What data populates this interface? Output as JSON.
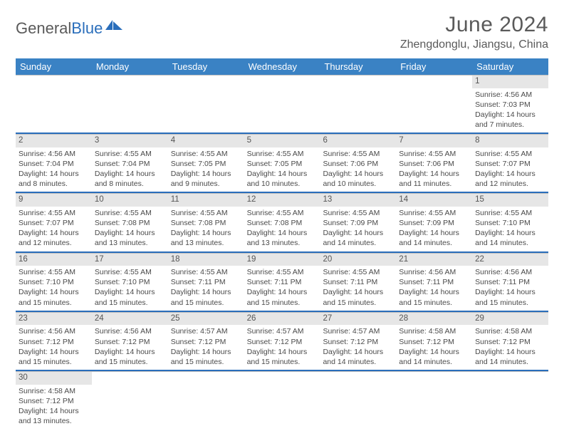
{
  "logo": {
    "text1": "General",
    "text2": "Blue"
  },
  "title": "June 2024",
  "location": "Zhengdonglu, Jiangsu, China",
  "dayNames": [
    "Sunday",
    "Monday",
    "Tuesday",
    "Wednesday",
    "Thursday",
    "Friday",
    "Saturday"
  ],
  "colors": {
    "headerBg": "#3a82c4",
    "accentLine": "#2a6ebb",
    "dayNumBg": "#e6e6e6",
    "text": "#4a4a4a"
  },
  "weeks": [
    [
      {
        "n": "",
        "sr": "",
        "ss": "",
        "dl": ""
      },
      {
        "n": "",
        "sr": "",
        "ss": "",
        "dl": ""
      },
      {
        "n": "",
        "sr": "",
        "ss": "",
        "dl": ""
      },
      {
        "n": "",
        "sr": "",
        "ss": "",
        "dl": ""
      },
      {
        "n": "",
        "sr": "",
        "ss": "",
        "dl": ""
      },
      {
        "n": "",
        "sr": "",
        "ss": "",
        "dl": ""
      },
      {
        "n": "1",
        "sr": "Sunrise: 4:56 AM",
        "ss": "Sunset: 7:03 PM",
        "dl": "Daylight: 14 hours and 7 minutes."
      }
    ],
    [
      {
        "n": "2",
        "sr": "Sunrise: 4:56 AM",
        "ss": "Sunset: 7:04 PM",
        "dl": "Daylight: 14 hours and 8 minutes."
      },
      {
        "n": "3",
        "sr": "Sunrise: 4:55 AM",
        "ss": "Sunset: 7:04 PM",
        "dl": "Daylight: 14 hours and 8 minutes."
      },
      {
        "n": "4",
        "sr": "Sunrise: 4:55 AM",
        "ss": "Sunset: 7:05 PM",
        "dl": "Daylight: 14 hours and 9 minutes."
      },
      {
        "n": "5",
        "sr": "Sunrise: 4:55 AM",
        "ss": "Sunset: 7:05 PM",
        "dl": "Daylight: 14 hours and 10 minutes."
      },
      {
        "n": "6",
        "sr": "Sunrise: 4:55 AM",
        "ss": "Sunset: 7:06 PM",
        "dl": "Daylight: 14 hours and 10 minutes."
      },
      {
        "n": "7",
        "sr": "Sunrise: 4:55 AM",
        "ss": "Sunset: 7:06 PM",
        "dl": "Daylight: 14 hours and 11 minutes."
      },
      {
        "n": "8",
        "sr": "Sunrise: 4:55 AM",
        "ss": "Sunset: 7:07 PM",
        "dl": "Daylight: 14 hours and 12 minutes."
      }
    ],
    [
      {
        "n": "9",
        "sr": "Sunrise: 4:55 AM",
        "ss": "Sunset: 7:07 PM",
        "dl": "Daylight: 14 hours and 12 minutes."
      },
      {
        "n": "10",
        "sr": "Sunrise: 4:55 AM",
        "ss": "Sunset: 7:08 PM",
        "dl": "Daylight: 14 hours and 13 minutes."
      },
      {
        "n": "11",
        "sr": "Sunrise: 4:55 AM",
        "ss": "Sunset: 7:08 PM",
        "dl": "Daylight: 14 hours and 13 minutes."
      },
      {
        "n": "12",
        "sr": "Sunrise: 4:55 AM",
        "ss": "Sunset: 7:08 PM",
        "dl": "Daylight: 14 hours and 13 minutes."
      },
      {
        "n": "13",
        "sr": "Sunrise: 4:55 AM",
        "ss": "Sunset: 7:09 PM",
        "dl": "Daylight: 14 hours and 14 minutes."
      },
      {
        "n": "14",
        "sr": "Sunrise: 4:55 AM",
        "ss": "Sunset: 7:09 PM",
        "dl": "Daylight: 14 hours and 14 minutes."
      },
      {
        "n": "15",
        "sr": "Sunrise: 4:55 AM",
        "ss": "Sunset: 7:10 PM",
        "dl": "Daylight: 14 hours and 14 minutes."
      }
    ],
    [
      {
        "n": "16",
        "sr": "Sunrise: 4:55 AM",
        "ss": "Sunset: 7:10 PM",
        "dl": "Daylight: 14 hours and 15 minutes."
      },
      {
        "n": "17",
        "sr": "Sunrise: 4:55 AM",
        "ss": "Sunset: 7:10 PM",
        "dl": "Daylight: 14 hours and 15 minutes."
      },
      {
        "n": "18",
        "sr": "Sunrise: 4:55 AM",
        "ss": "Sunset: 7:11 PM",
        "dl": "Daylight: 14 hours and 15 minutes."
      },
      {
        "n": "19",
        "sr": "Sunrise: 4:55 AM",
        "ss": "Sunset: 7:11 PM",
        "dl": "Daylight: 14 hours and 15 minutes."
      },
      {
        "n": "20",
        "sr": "Sunrise: 4:55 AM",
        "ss": "Sunset: 7:11 PM",
        "dl": "Daylight: 14 hours and 15 minutes."
      },
      {
        "n": "21",
        "sr": "Sunrise: 4:56 AM",
        "ss": "Sunset: 7:11 PM",
        "dl": "Daylight: 14 hours and 15 minutes."
      },
      {
        "n": "22",
        "sr": "Sunrise: 4:56 AM",
        "ss": "Sunset: 7:11 PM",
        "dl": "Daylight: 14 hours and 15 minutes."
      }
    ],
    [
      {
        "n": "23",
        "sr": "Sunrise: 4:56 AM",
        "ss": "Sunset: 7:12 PM",
        "dl": "Daylight: 14 hours and 15 minutes."
      },
      {
        "n": "24",
        "sr": "Sunrise: 4:56 AM",
        "ss": "Sunset: 7:12 PM",
        "dl": "Daylight: 14 hours and 15 minutes."
      },
      {
        "n": "25",
        "sr": "Sunrise: 4:57 AM",
        "ss": "Sunset: 7:12 PM",
        "dl": "Daylight: 14 hours and 15 minutes."
      },
      {
        "n": "26",
        "sr": "Sunrise: 4:57 AM",
        "ss": "Sunset: 7:12 PM",
        "dl": "Daylight: 14 hours and 15 minutes."
      },
      {
        "n": "27",
        "sr": "Sunrise: 4:57 AM",
        "ss": "Sunset: 7:12 PM",
        "dl": "Daylight: 14 hours and 14 minutes."
      },
      {
        "n": "28",
        "sr": "Sunrise: 4:58 AM",
        "ss": "Sunset: 7:12 PM",
        "dl": "Daylight: 14 hours and 14 minutes."
      },
      {
        "n": "29",
        "sr": "Sunrise: 4:58 AM",
        "ss": "Sunset: 7:12 PM",
        "dl": "Daylight: 14 hours and 14 minutes."
      }
    ],
    [
      {
        "n": "30",
        "sr": "Sunrise: 4:58 AM",
        "ss": "Sunset: 7:12 PM",
        "dl": "Daylight: 14 hours and 13 minutes."
      },
      {
        "n": "",
        "sr": "",
        "ss": "",
        "dl": ""
      },
      {
        "n": "",
        "sr": "",
        "ss": "",
        "dl": ""
      },
      {
        "n": "",
        "sr": "",
        "ss": "",
        "dl": ""
      },
      {
        "n": "",
        "sr": "",
        "ss": "",
        "dl": ""
      },
      {
        "n": "",
        "sr": "",
        "ss": "",
        "dl": ""
      },
      {
        "n": "",
        "sr": "",
        "ss": "",
        "dl": ""
      }
    ]
  ]
}
